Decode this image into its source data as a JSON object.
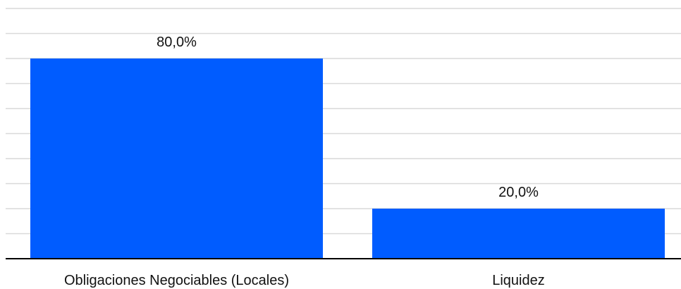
{
  "chart_data": {
    "type": "bar",
    "categories": [
      "Obligaciones Negociables (Locales)",
      "Liquidez"
    ],
    "values": [
      80.0,
      20.0
    ],
    "data_labels": [
      "80,0%",
      "20,0%"
    ],
    "title": "",
    "xlabel": "",
    "ylabel": "",
    "ylim": [
      0,
      100
    ],
    "grid": true,
    "legend": "none",
    "bar_color": "#005CFF"
  }
}
